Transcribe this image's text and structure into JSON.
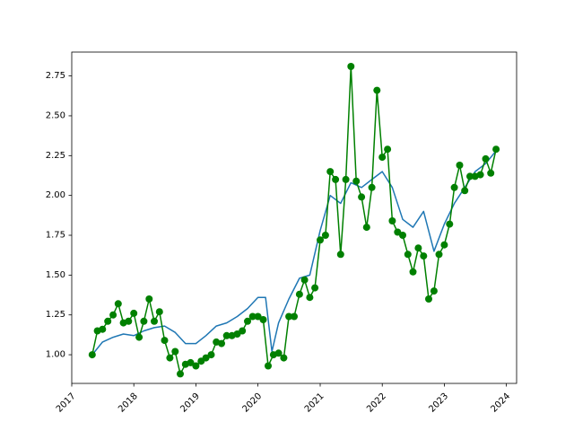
{
  "chart_data": {
    "type": "line",
    "title": "",
    "xlabel": "",
    "ylabel": "",
    "xlim": [
      "2017-01-01",
      "2024-03-01"
    ],
    "ylim": [
      0.82,
      2.9
    ],
    "x_ticks": [
      "2017",
      "2018",
      "2019",
      "2020",
      "2021",
      "2022",
      "2023",
      "2024"
    ],
    "y_ticks": [
      "1.00",
      "1.25",
      "1.50",
      "1.75",
      "2.00",
      "2.25",
      "2.50",
      "2.75"
    ],
    "grid": false,
    "legend": "none",
    "series": [
      {
        "style": "line",
        "color": "#1f77b4",
        "x": [
          "2017-05-01",
          "2017-07-01",
          "2017-09-01",
          "2017-11-01",
          "2018-01-01",
          "2018-03-01",
          "2018-05-01",
          "2018-07-01",
          "2018-09-01",
          "2018-11-01",
          "2019-01-01",
          "2019-03-01",
          "2019-05-01",
          "2019-07-01",
          "2019-09-01",
          "2019-11-01",
          "2020-01-01",
          "2020-02-15",
          "2020-03-23",
          "2020-05-01",
          "2020-07-01",
          "2020-09-01",
          "2020-11-01",
          "2021-01-01",
          "2021-03-01",
          "2021-05-01",
          "2021-07-01",
          "2021-09-01",
          "2021-11-01",
          "2022-01-01",
          "2022-03-01",
          "2022-05-01",
          "2022-07-01",
          "2022-09-01",
          "2022-11-01",
          "2023-01-01",
          "2023-03-01",
          "2023-05-01",
          "2023-07-01",
          "2023-09-01",
          "2023-11-01"
        ],
        "y": [
          1.0,
          1.08,
          1.11,
          1.13,
          1.12,
          1.15,
          1.17,
          1.18,
          1.14,
          1.07,
          1.07,
          1.12,
          1.18,
          1.2,
          1.24,
          1.29,
          1.36,
          1.36,
          1.02,
          1.2,
          1.35,
          1.48,
          1.5,
          1.78,
          2.0,
          1.95,
          2.08,
          2.05,
          2.1,
          2.15,
          2.05,
          1.85,
          1.8,
          1.9,
          1.65,
          1.82,
          1.95,
          2.05,
          2.15,
          2.2,
          2.28
        ]
      },
      {
        "style": "line-markers",
        "color": "#008000",
        "x": [
          "2017-05-01",
          "2017-06-01",
          "2017-07-01",
          "2017-08-01",
          "2017-09-01",
          "2017-10-01",
          "2017-11-01",
          "2017-12-01",
          "2018-01-01",
          "2018-02-01",
          "2018-03-01",
          "2018-04-01",
          "2018-05-01",
          "2018-06-01",
          "2018-07-01",
          "2018-08-01",
          "2018-09-01",
          "2018-10-01",
          "2018-11-01",
          "2018-12-01",
          "2019-01-01",
          "2019-02-01",
          "2019-03-01",
          "2019-04-01",
          "2019-05-01",
          "2019-06-01",
          "2019-07-01",
          "2019-08-01",
          "2019-09-01",
          "2019-10-01",
          "2019-11-01",
          "2019-12-01",
          "2020-01-01",
          "2020-02-01",
          "2020-03-01",
          "2020-04-01",
          "2020-05-01",
          "2020-06-01",
          "2020-07-01",
          "2020-08-01",
          "2020-09-01",
          "2020-10-01",
          "2020-11-01",
          "2020-12-01",
          "2021-01-01",
          "2021-02-01",
          "2021-03-01",
          "2021-04-01",
          "2021-05-01",
          "2021-06-01",
          "2021-07-01",
          "2021-08-01",
          "2021-09-01",
          "2021-10-01",
          "2021-11-01",
          "2021-12-01",
          "2022-01-01",
          "2022-02-01",
          "2022-03-01",
          "2022-04-01",
          "2022-05-01",
          "2022-06-01",
          "2022-07-01",
          "2022-08-01",
          "2022-09-01",
          "2022-10-01",
          "2022-11-01",
          "2022-12-01",
          "2023-01-01",
          "2023-02-01",
          "2023-03-01",
          "2023-04-01",
          "2023-05-01",
          "2023-06-01",
          "2023-07-01",
          "2023-08-01",
          "2023-09-01",
          "2023-10-01",
          "2023-11-01"
        ],
        "y": [
          1.0,
          1.15,
          1.16,
          1.21,
          1.25,
          1.32,
          1.2,
          1.21,
          1.26,
          1.11,
          1.21,
          1.35,
          1.21,
          1.27,
          1.09,
          0.98,
          1.02,
          0.88,
          0.94,
          0.95,
          0.93,
          0.96,
          0.98,
          1.0,
          1.08,
          1.07,
          1.12,
          1.12,
          1.13,
          1.15,
          1.21,
          1.24,
          1.24,
          1.22,
          0.93,
          1.0,
          1.01,
          0.98,
          1.24,
          1.24,
          1.38,
          1.47,
          1.36,
          1.42,
          1.72,
          1.75,
          2.15,
          2.1,
          1.63,
          2.1,
          2.81,
          2.09,
          1.99,
          1.8,
          2.05,
          2.66,
          2.24,
          2.29,
          1.84,
          1.77,
          1.75,
          1.63,
          1.52,
          1.67,
          1.62,
          1.35,
          1.4,
          1.63,
          1.69,
          1.82,
          2.05,
          2.19,
          2.03,
          2.12,
          2.12,
          2.13,
          2.23,
          2.14,
          2.29
        ]
      }
    ]
  }
}
